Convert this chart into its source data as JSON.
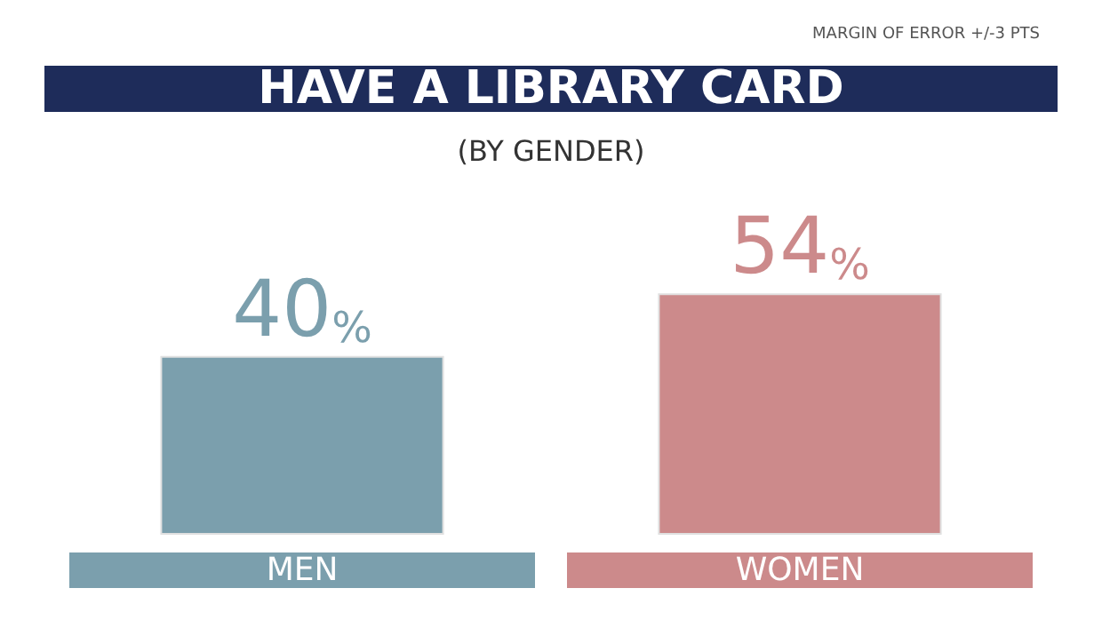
{
  "chart_data": {
    "type": "bar",
    "title": "HAVE A LIBRARY CARD",
    "subtitle": "(BY GENDER)",
    "annotations": [
      "MARGIN OF ERROR +/-3 PTS"
    ],
    "categories": [
      "MEN",
      "WOMEN"
    ],
    "values": [
      40,
      54
    ],
    "colors": [
      "#7b9fad",
      "#cc8a8b"
    ],
    "value_labels": [
      "40%",
      "54%"
    ]
  }
}
